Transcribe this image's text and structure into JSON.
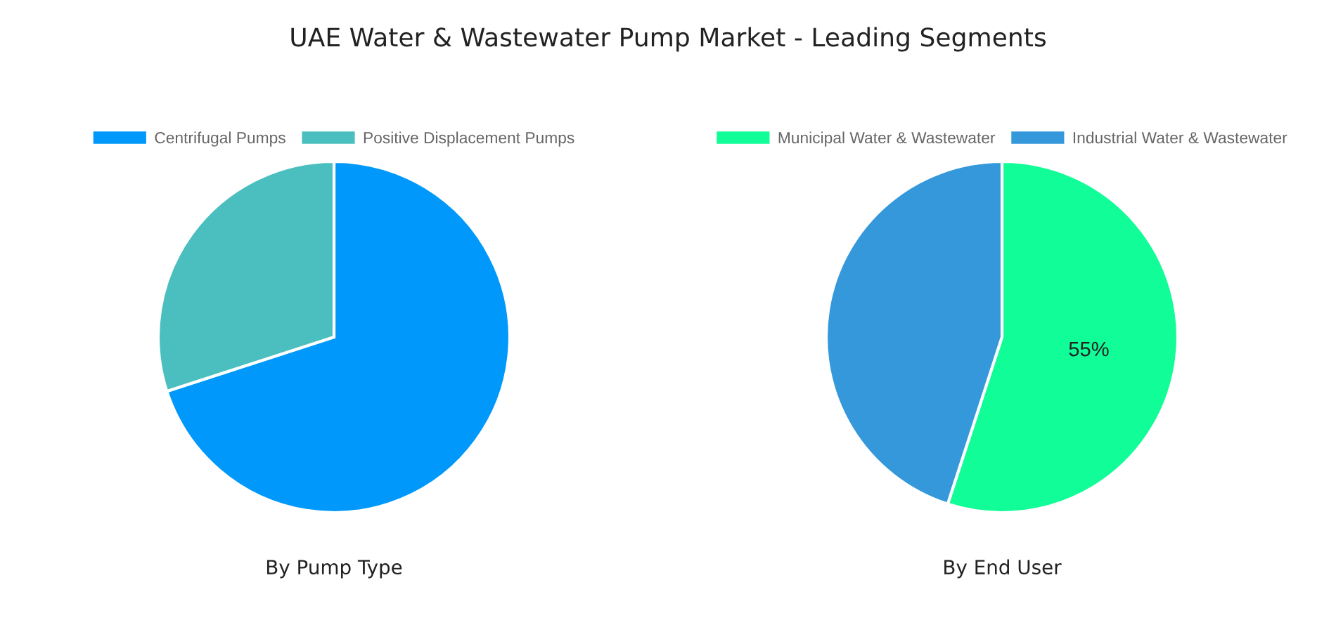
{
  "chart_data": [
    {
      "type": "pie",
      "title": "UAE Water & Wastewater Pump Market - Leading Segments",
      "xlabel": "By Pump Type",
      "categories": [
        "Centrifugal Pumps",
        "Positive Displacement Pumps"
      ],
      "values": [
        70,
        30
      ],
      "colors": [
        "#0099fb",
        "#4bbfbf"
      ],
      "legend": "top"
    },
    {
      "type": "pie",
      "xlabel": "By End User",
      "categories": [
        "Municipal Water & Wastewater",
        "Industrial Water & Wastewater"
      ],
      "values": [
        55,
        45
      ],
      "colors": [
        "#10fd98",
        "#3498db"
      ],
      "value_labels": [
        "55%",
        null
      ],
      "legend": "top"
    }
  ]
}
